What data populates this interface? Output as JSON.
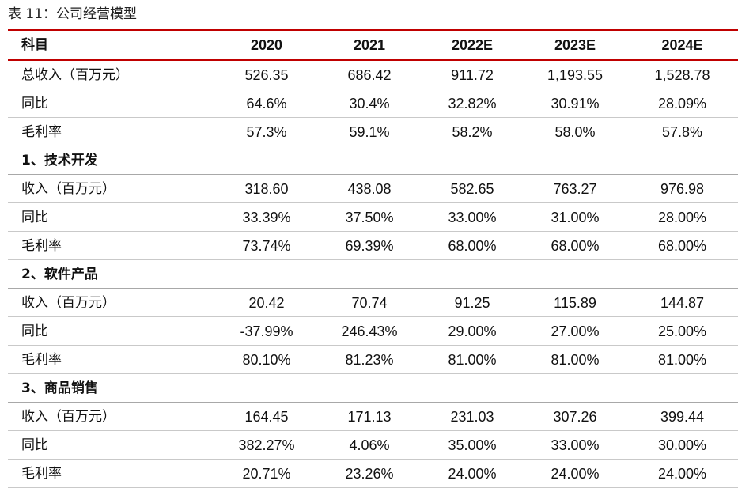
{
  "caption": "表 11：公司经营模型",
  "header": [
    "科目",
    "2020",
    "2021",
    "2022E",
    "2023E",
    "2024E"
  ],
  "rows": [
    {
      "label": "总收入（百万元）",
      "values": [
        "526.35",
        "686.42",
        "911.72",
        "1,193.55",
        "1,528.78"
      ]
    },
    {
      "label": "同比",
      "values": [
        "64.6%",
        "30.4%",
        "32.82%",
        "30.91%",
        "28.09%"
      ]
    },
    {
      "label": "毛利率",
      "values": [
        "57.3%",
        "59.1%",
        "58.2%",
        "58.0%",
        "57.8%"
      ]
    },
    {
      "label": "1、技术开发",
      "values": [
        "",
        "",
        "",
        "",
        ""
      ]
    },
    {
      "label": "收入（百万元）",
      "values": [
        "318.60",
        "438.08",
        "582.65",
        "763.27",
        "976.98"
      ]
    },
    {
      "label": "同比",
      "values": [
        "33.39%",
        "37.50%",
        "33.00%",
        "31.00%",
        "28.00%"
      ]
    },
    {
      "label": "毛利率",
      "values": [
        "73.74%",
        "69.39%",
        "68.00%",
        "68.00%",
        "68.00%"
      ]
    },
    {
      "label": "2、软件产品",
      "values": [
        "",
        "",
        "",
        "",
        ""
      ]
    },
    {
      "label": "收入（百万元）",
      "values": [
        "20.42",
        "70.74",
        "91.25",
        "115.89",
        "144.87"
      ]
    },
    {
      "label": "同比",
      "values": [
        "-37.99%",
        "246.43%",
        "29.00%",
        "27.00%",
        "25.00%"
      ]
    },
    {
      "label": "毛利率",
      "values": [
        "80.10%",
        "81.23%",
        "81.00%",
        "81.00%",
        "81.00%"
      ]
    },
    {
      "label": "3、商品销售",
      "values": [
        "",
        "",
        "",
        "",
        ""
      ]
    },
    {
      "label": "收入（百万元）",
      "values": [
        "164.45",
        "171.13",
        "231.03",
        "307.26",
        "399.44"
      ]
    },
    {
      "label": "同比",
      "values": [
        "382.27%",
        "4.06%",
        "35.00%",
        "33.00%",
        "30.00%"
      ]
    },
    {
      "label": "毛利率",
      "values": [
        "20.71%",
        "23.26%",
        "24.00%",
        "24.00%",
        "24.00%"
      ]
    }
  ]
}
